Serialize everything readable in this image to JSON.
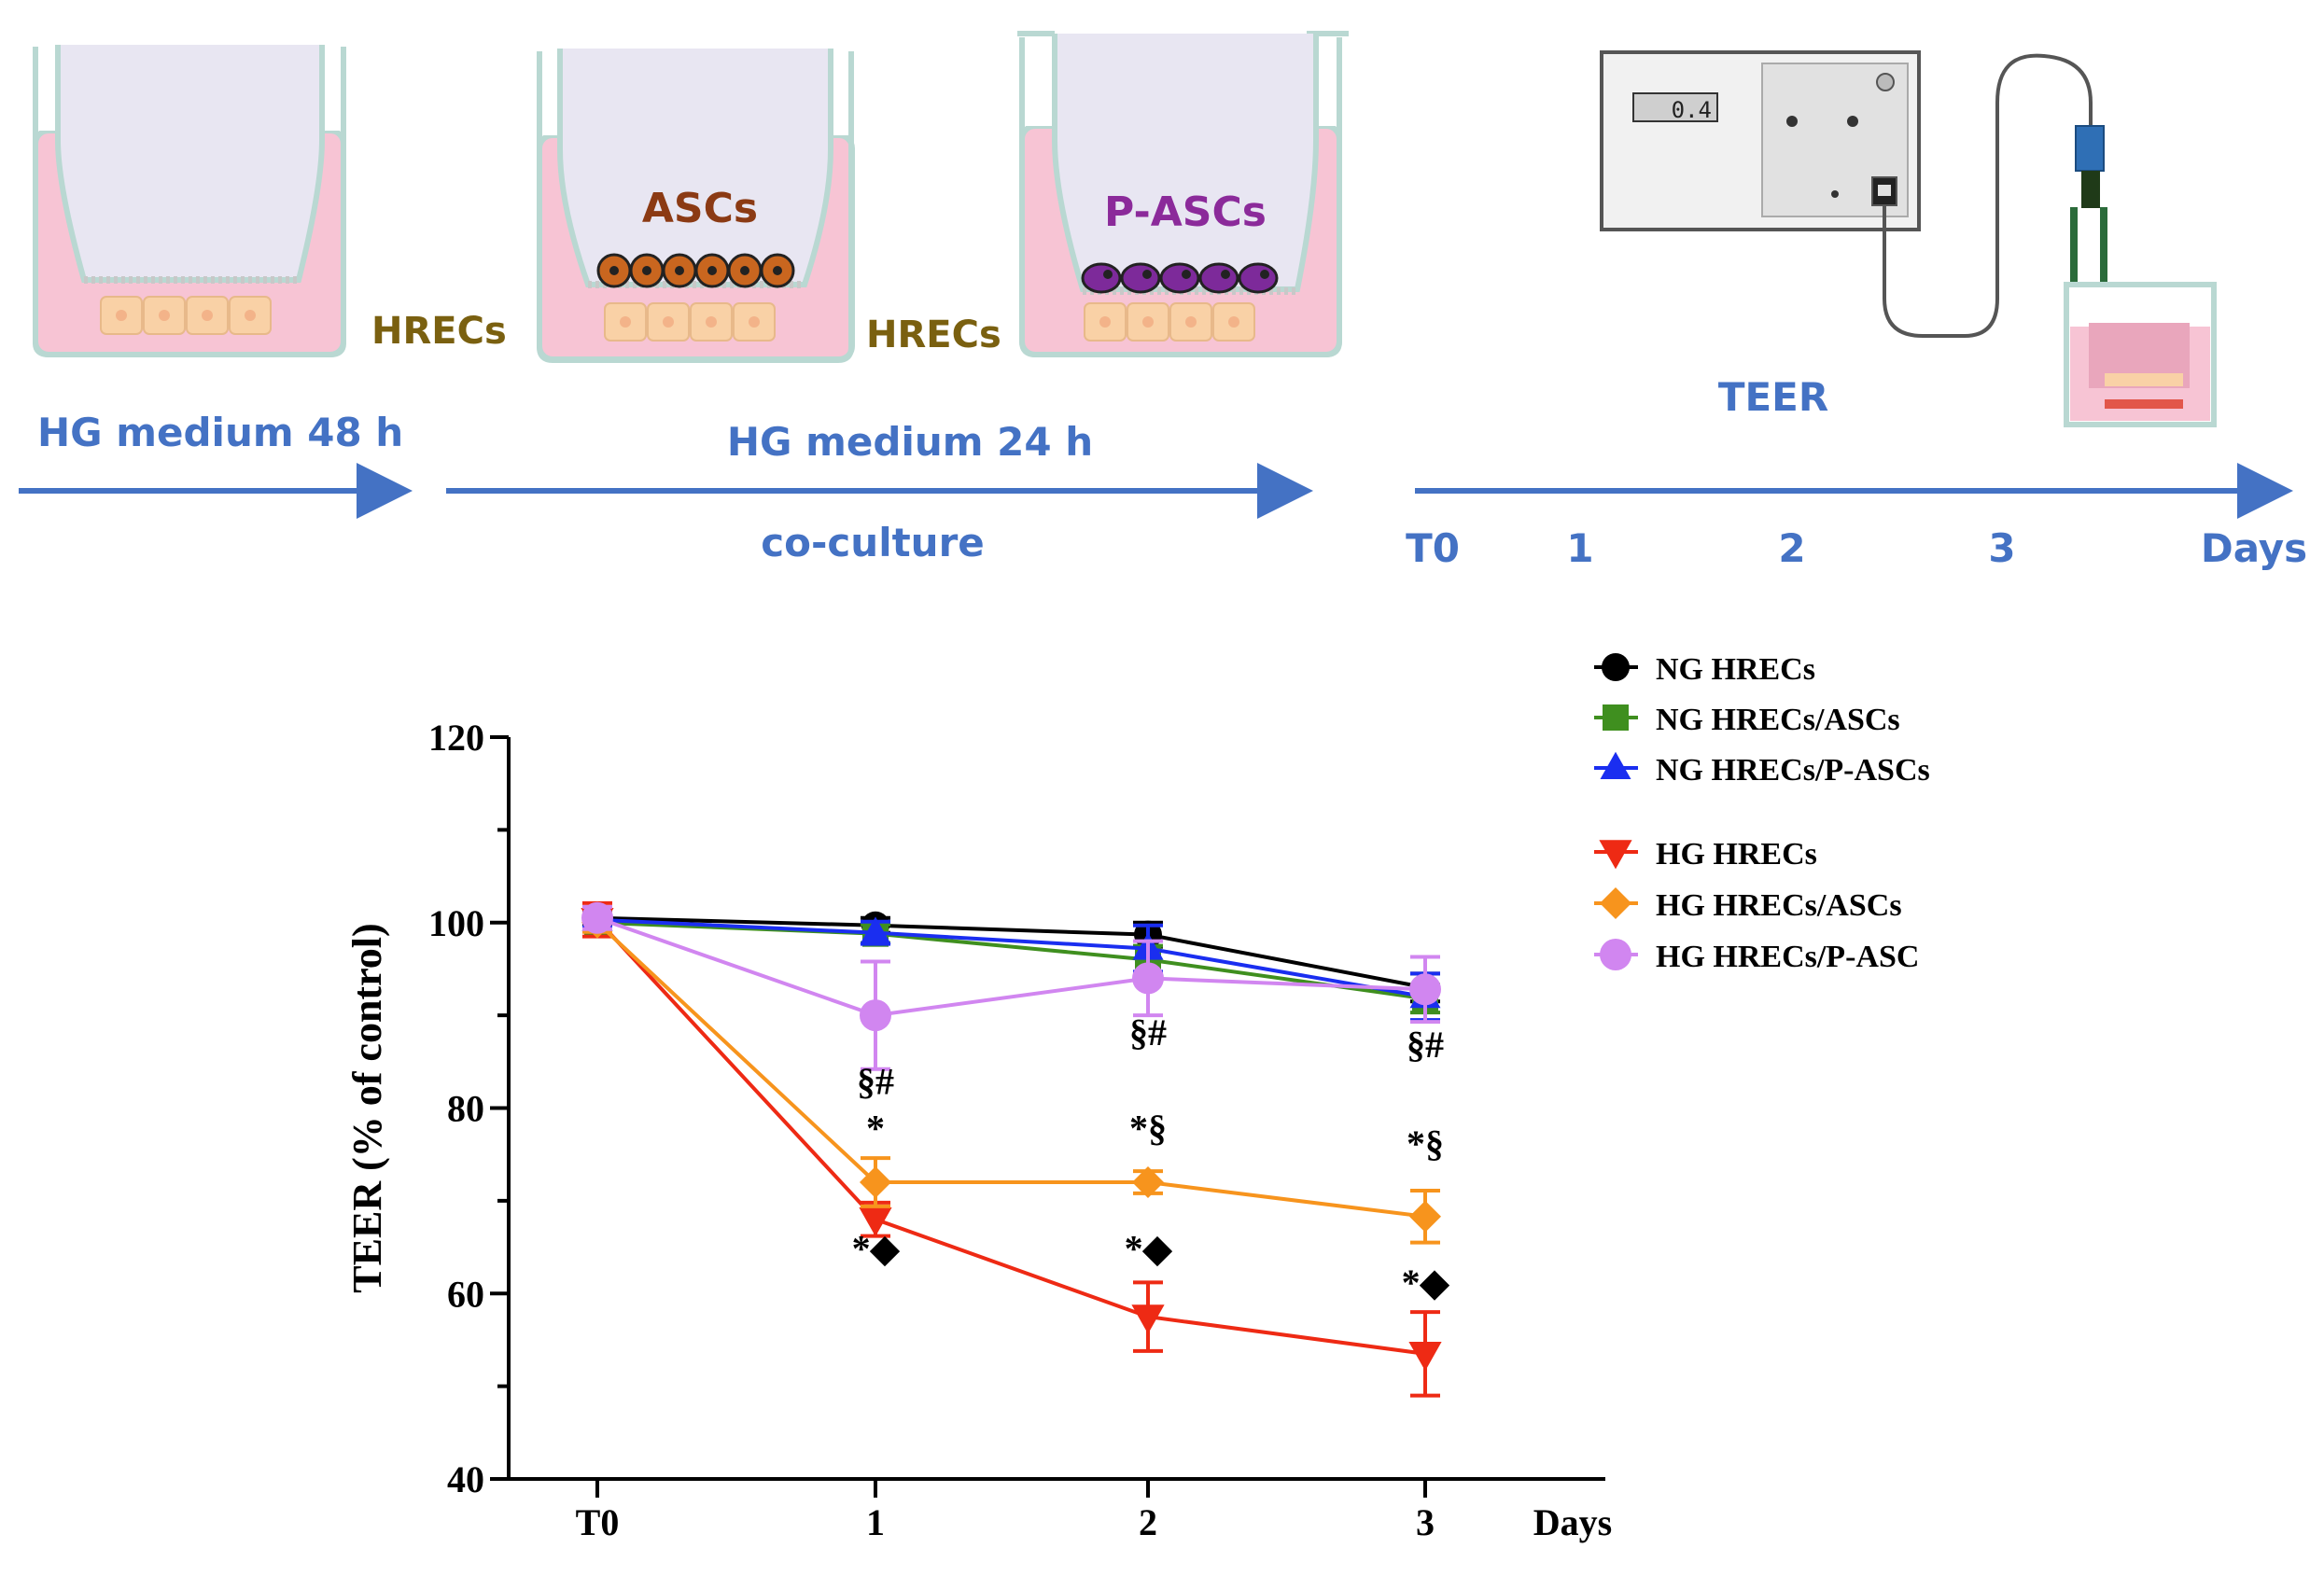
{
  "colors": {
    "arrow": "#4472c4",
    "workflow_text": "#4472c4",
    "hrec_label": "#7a6010",
    "asc_label": "#8b3a14",
    "pasc_label": "#8b2a9a",
    "medium_pink": "#f7c4d4",
    "insert_outline": "#b9d8d2",
    "cell_fill": "#f9d1a6",
    "asc_cell": "#c9661f",
    "pasc_cell": "#7d2a9a"
  },
  "workflow": {
    "wells": [
      {
        "top_label": "",
        "side_label": "HRECs"
      },
      {
        "top_label": "ASCs",
        "side_label": "HRECs"
      },
      {
        "top_label": "P-ASCs",
        "side_label": ""
      }
    ],
    "phase1_label": "HG medium 48 h",
    "phase2_label": "HG medium 24 h",
    "coculture_label": "co-culture",
    "meter_display": "0.4",
    "teer_label": "TEER",
    "timeline_ticks": [
      "T0",
      "1",
      "2",
      "3",
      "Days"
    ]
  },
  "chart_data": {
    "type": "line",
    "ylabel": "TEER (% of control)",
    "xlabel": "Days",
    "categories": [
      "T0",
      "1",
      "2",
      "3"
    ],
    "ylim": [
      40,
      120
    ],
    "yticks": [
      40,
      60,
      80,
      100,
      120
    ],
    "series": [
      {
        "name": "NG HRECs",
        "color": "#000000",
        "marker": "circle",
        "values": [
          100.5,
          99.7,
          98.7,
          93.0
        ],
        "errors": [
          0.8,
          0.8,
          1.3,
          1.5
        ]
      },
      {
        "name": "NG HRECs/ASCs",
        "color": "#3f8f1f",
        "marker": "square",
        "values": [
          100.0,
          98.8,
          96.0,
          91.8
        ],
        "errors": [
          0.8,
          1.0,
          1.5,
          1.5
        ]
      },
      {
        "name": "NG HRECs/P-ASCs",
        "color": "#1a2ef0",
        "marker": "triangle-up",
        "values": [
          100.3,
          98.9,
          97.2,
          92.0
        ],
        "errors": [
          0.8,
          1.2,
          2.5,
          2.5
        ]
      },
      {
        "name": "HG HRECs",
        "color": "#ee2a14",
        "marker": "triangle-down",
        "values": [
          100.3,
          68.0,
          57.5,
          53.5
        ],
        "errors": [
          1.8,
          1.8,
          3.7,
          4.5
        ]
      },
      {
        "name": "HG HRECs/ASCs",
        "color": "#f7941d",
        "marker": "diamond",
        "values": [
          100.0,
          72.0,
          72.0,
          68.3
        ],
        "errors": [
          1.0,
          2.6,
          1.2,
          2.8
        ]
      },
      {
        "name": "HG HRECs/P-ASC",
        "color": "#d186f0",
        "marker": "circle",
        "values": [
          100.5,
          90.0,
          94.0,
          92.8
        ],
        "errors": [
          1.2,
          5.8,
          4.0,
          3.5
        ]
      }
    ],
    "annotations": [
      {
        "text": "§#",
        "x": "1",
        "y": 81.5
      },
      {
        "text": "*",
        "x": "1",
        "y": 76.5
      },
      {
        "text": "*◆",
        "x": "1",
        "y": 63.5
      },
      {
        "text": "§#",
        "x": "2",
        "y": 86.8
      },
      {
        "text": "*§",
        "x": "2",
        "y": 76.5
      },
      {
        "text": "*◆",
        "x": "2",
        "y": 63.5
      },
      {
        "text": "§#",
        "x": "3",
        "y": 85.5
      },
      {
        "text": "*§",
        "x": "3",
        "y": 74.8
      },
      {
        "text": "*◆",
        "x": "3",
        "y": 59.8
      }
    ]
  }
}
